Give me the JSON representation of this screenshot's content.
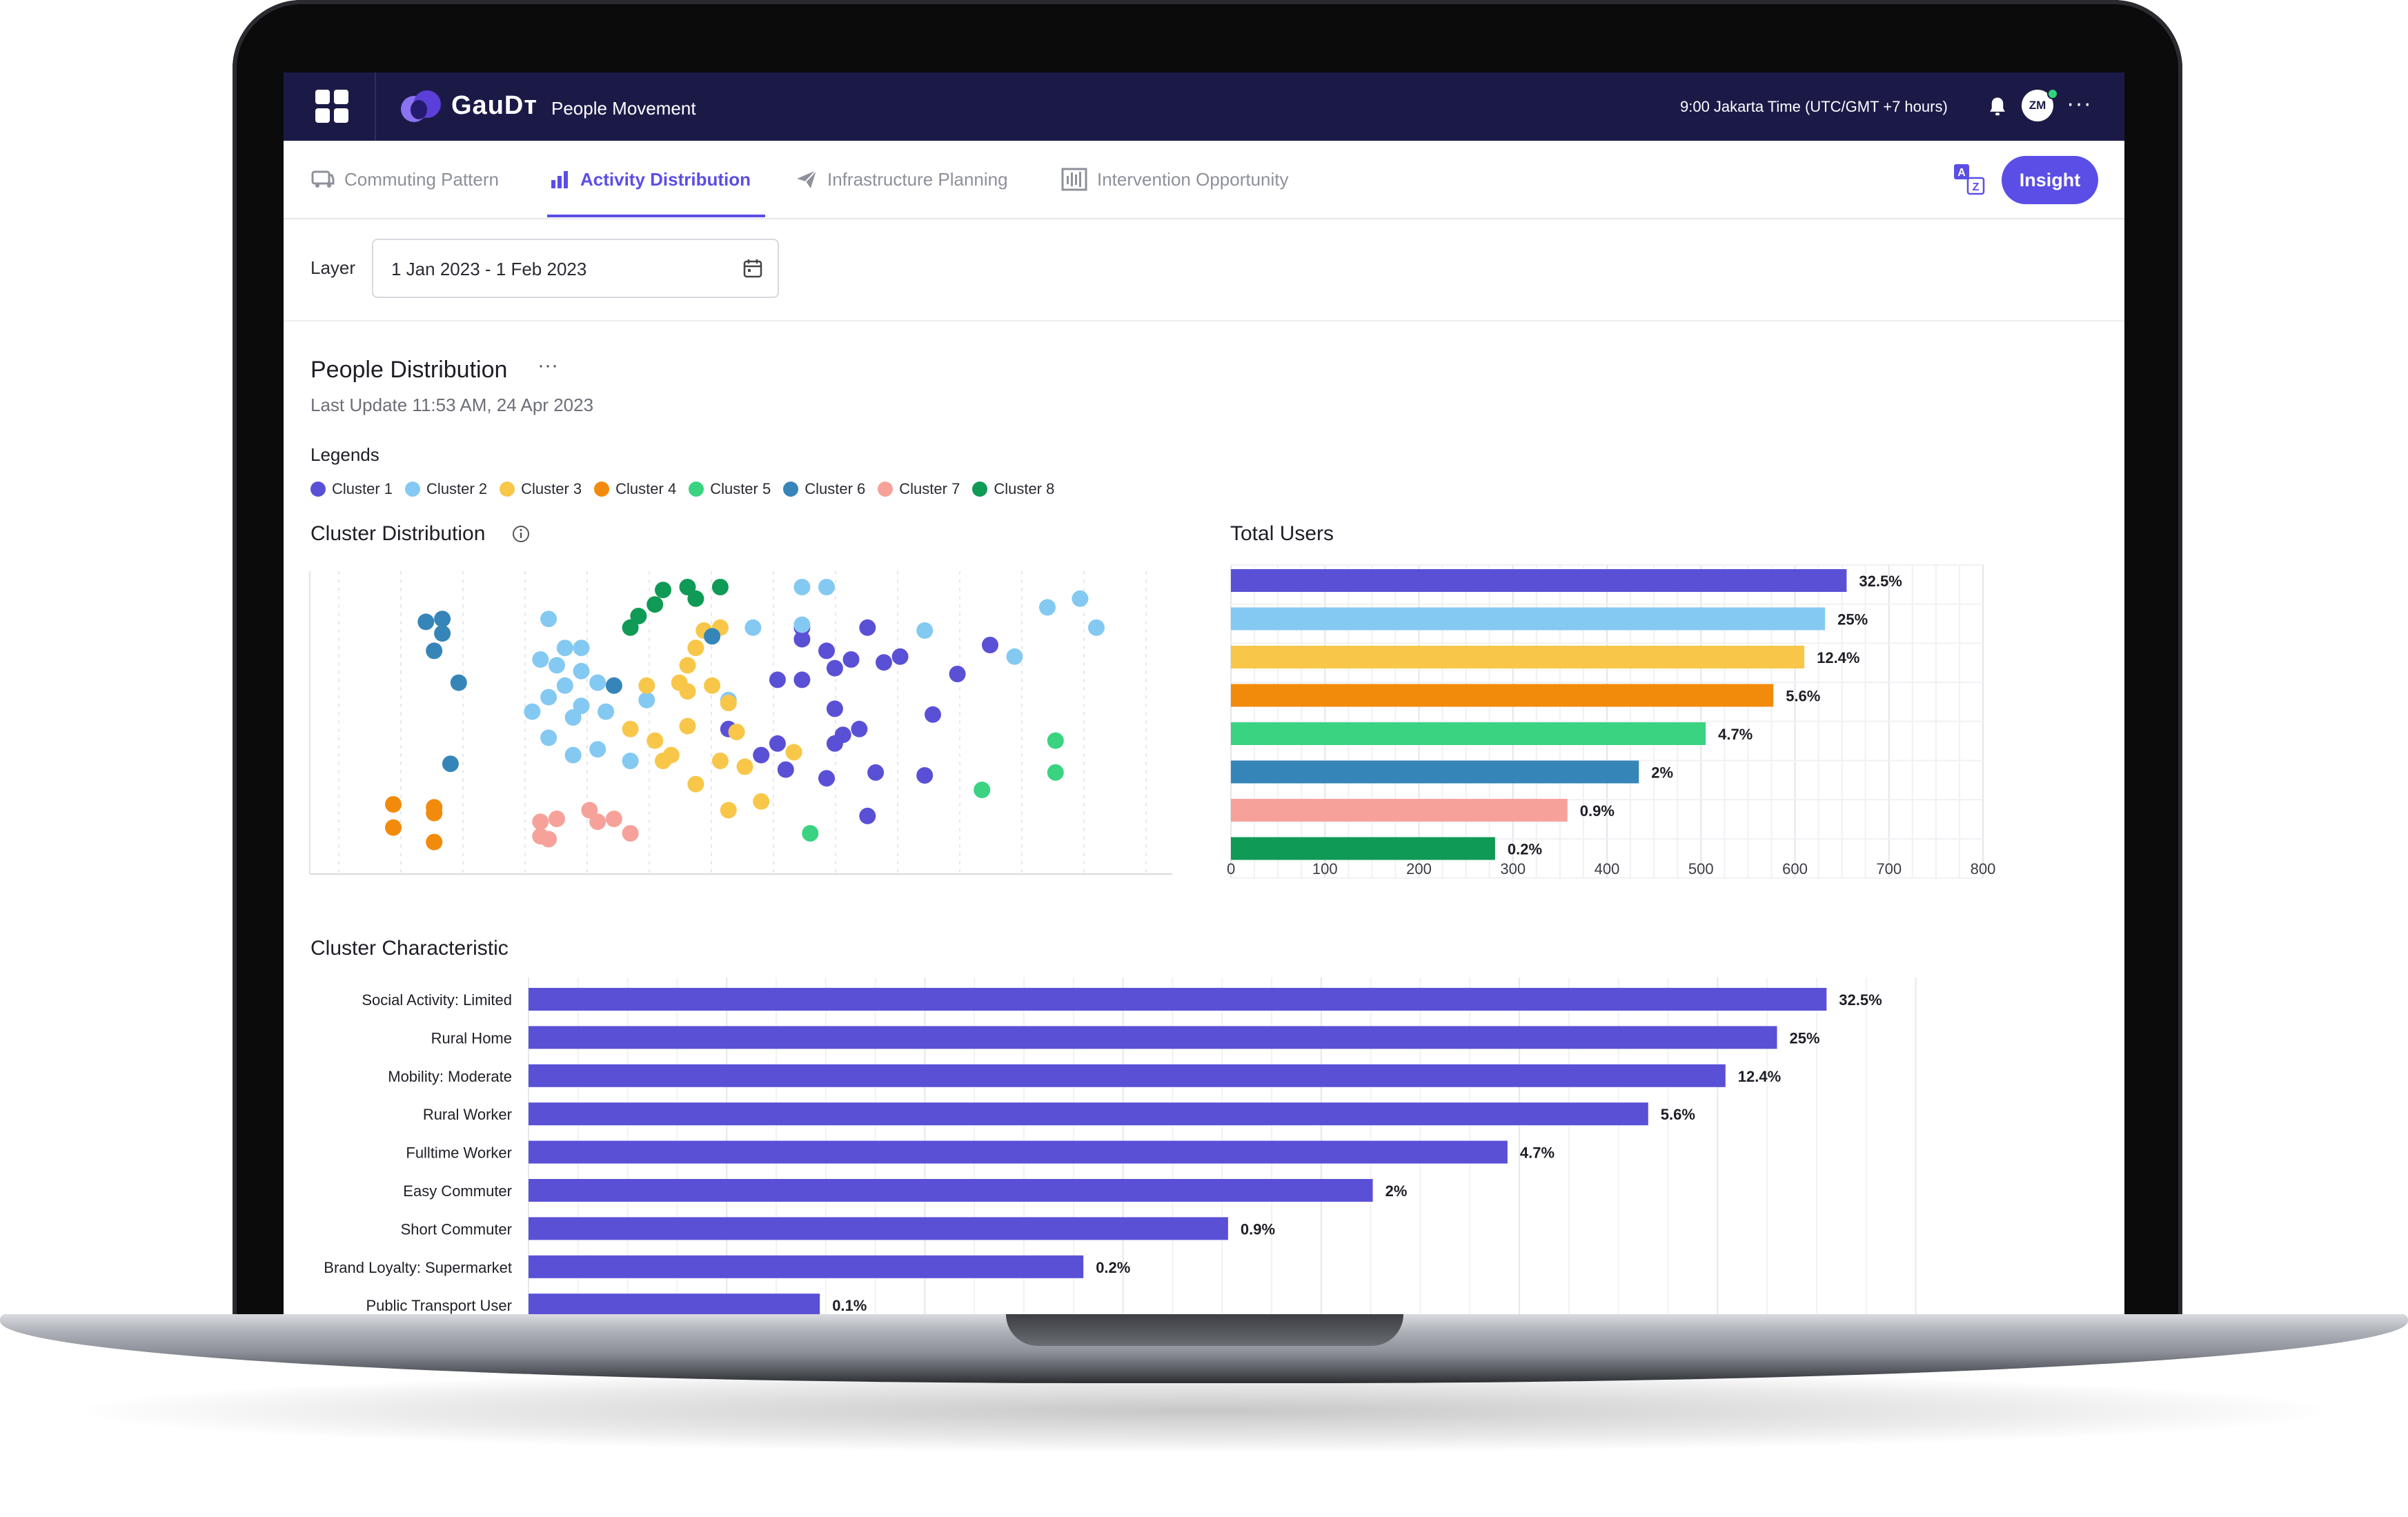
{
  "topbar": {
    "brand": "GauDᴛ",
    "subtitle": "People Movement",
    "time_text": "9:00 Jakarta Time (UTC/GMT +7 hours)",
    "avatar_initials": "ZM",
    "more": "···"
  },
  "tabs": [
    {
      "label": "Commuting Pattern",
      "icon": "bus-icon",
      "active": false
    },
    {
      "label": "Activity Distribution",
      "icon": "bar-chart-icon",
      "active": true
    },
    {
      "label": "Infrastructure Planning",
      "icon": "paper-plane-icon",
      "active": false
    },
    {
      "label": "Intervention Opportunity",
      "icon": "waveform-icon",
      "active": false
    }
  ],
  "insight_button": "Insight",
  "filter": {
    "layer_label": "Layer",
    "date_range": "1 Jan 2023 - 1 Feb 2023"
  },
  "panel": {
    "title": "People Distribution",
    "menu": "···",
    "last_update": "Last Update 11:53 AM, 24 Apr 2023",
    "legends_title": "Legends"
  },
  "legend": [
    {
      "name": "Cluster 1",
      "color": "#5a50d6"
    },
    {
      "name": "Cluster 2",
      "color": "#84c9f2"
    },
    {
      "name": "Cluster 3",
      "color": "#f8c74a"
    },
    {
      "name": "Cluster 4",
      "color": "#f28b0c"
    },
    {
      "name": "Cluster 5",
      "color": "#39d382"
    },
    {
      "name": "Cluster 6",
      "color": "#3685b8"
    },
    {
      "name": "Cluster 7",
      "color": "#f6a29a"
    },
    {
      "name": "Cluster 8",
      "color": "#0f9a55"
    }
  ],
  "chart_data": [
    {
      "type": "scatter",
      "title": "Cluster Distribution",
      "xlim": [
        0,
        100
      ],
      "ylim": [
        0,
        100
      ],
      "grid": true,
      "series": [
        {
          "name": "Cluster 1",
          "color": "#5a50d6",
          "points": [
            [
              57,
              81
            ],
            [
              65,
              81
            ],
            [
              57,
              77
            ],
            [
              60,
              73
            ],
            [
              63,
              70
            ],
            [
              67,
              69
            ],
            [
              61,
              67
            ],
            [
              69,
              71
            ],
            [
              61,
              53
            ],
            [
              73,
              51
            ],
            [
              76,
              65
            ],
            [
              54,
              63
            ],
            [
              57,
              63
            ],
            [
              48,
              46
            ],
            [
              54,
              41
            ],
            [
              61,
              41
            ],
            [
              64,
              46
            ],
            [
              52,
              37
            ],
            [
              55,
              32
            ],
            [
              62,
              44
            ],
            [
              66,
              31
            ],
            [
              60,
              29
            ],
            [
              65,
              16
            ],
            [
              72,
              30
            ],
            [
              80,
              75
            ]
          ]
        },
        {
          "name": "Cluster 2",
          "color": "#84c9f2",
          "points": [
            [
              57,
              95
            ],
            [
              60,
              95
            ],
            [
              26,
              84
            ],
            [
              28,
              74
            ],
            [
              30,
              74
            ],
            [
              25,
              70
            ],
            [
              27,
              68
            ],
            [
              30,
              66
            ],
            [
              32,
              62
            ],
            [
              28,
              61
            ],
            [
              26,
              57
            ],
            [
              30,
              54
            ],
            [
              33,
              52
            ],
            [
              24,
              52
            ],
            [
              29,
              50
            ],
            [
              26,
              43
            ],
            [
              32,
              39
            ],
            [
              38,
              56
            ],
            [
              29,
              37
            ],
            [
              36,
              35
            ],
            [
              48,
              56
            ],
            [
              51,
              81
            ],
            [
              57,
              82
            ],
            [
              72,
              80
            ],
            [
              93,
              81
            ],
            [
              87,
              88
            ],
            [
              83,
              71
            ],
            [
              91,
              91
            ]
          ]
        },
        {
          "name": "Cluster 3",
          "color": "#f8c74a",
          "points": [
            [
              47,
              81
            ],
            [
              45,
              80
            ],
            [
              44,
              74
            ],
            [
              43,
              68
            ],
            [
              42,
              62
            ],
            [
              38,
              61
            ],
            [
              43,
              59
            ],
            [
              43,
              47
            ],
            [
              36,
              46
            ],
            [
              39,
              42
            ],
            [
              41,
              37
            ],
            [
              47,
              35
            ],
            [
              40,
              35
            ],
            [
              50,
              33
            ],
            [
              56,
              38
            ],
            [
              52,
              21
            ],
            [
              48,
              18
            ],
            [
              44,
              27
            ],
            [
              48,
              55
            ],
            [
              49,
              45
            ],
            [
              46,
              61
            ]
          ]
        },
        {
          "name": "Cluster 4",
          "color": "#f28b0c",
          "points": [
            [
              7,
              20
            ],
            [
              12,
              19
            ],
            [
              7,
              12
            ],
            [
              12,
              7
            ],
            [
              12,
              17
            ]
          ]
        },
        {
          "name": "Cluster 5",
          "color": "#39d382",
          "points": [
            [
              58,
              10
            ],
            [
              79,
              25
            ],
            [
              88,
              42
            ],
            [
              88,
              31
            ]
          ]
        },
        {
          "name": "Cluster 6",
          "color": "#3685b8",
          "points": [
            [
              11,
              83
            ],
            [
              13,
              84
            ],
            [
              13,
              79
            ],
            [
              12,
              73
            ],
            [
              15,
              62
            ],
            [
              14,
              34
            ],
            [
              34,
              61
            ],
            [
              46,
              78
            ]
          ]
        },
        {
          "name": "Cluster 7",
          "color": "#f6a29a",
          "points": [
            [
              25,
              14
            ],
            [
              27,
              15
            ],
            [
              25,
              9
            ],
            [
              26,
              8
            ],
            [
              32,
              14
            ],
            [
              31,
              18
            ],
            [
              34,
              15
            ],
            [
              36,
              10
            ]
          ]
        },
        {
          "name": "Cluster 8",
          "color": "#0f9a55",
          "points": [
            [
              43,
              95
            ],
            [
              40,
              94
            ],
            [
              39,
              89
            ],
            [
              37,
              85
            ],
            [
              36,
              81
            ],
            [
              44,
              91
            ],
            [
              47,
              95
            ]
          ]
        }
      ]
    },
    {
      "type": "bar",
      "title": "Total Users",
      "orientation": "horizontal",
      "categories": [
        "Cluster 1",
        "Cluster 2",
        "Cluster 3",
        "Cluster 4",
        "Cluster 5",
        "Cluster 6",
        "Cluster 7",
        "Cluster 8"
      ],
      "values": [
        655,
        632,
        610,
        577,
        505,
        434,
        358,
        281
      ],
      "labels": [
        "32.5%",
        "25%",
        "12.4%",
        "5.6%",
        "4.7%",
        "2%",
        "0.9%",
        "0.2%"
      ],
      "colors": [
        "#5a50d6",
        "#84c9f2",
        "#f8c74a",
        "#f28b0c",
        "#39d382",
        "#3685b8",
        "#f6a29a",
        "#0f9a55"
      ],
      "xlim": [
        0,
        800
      ],
      "xticks": [
        "0",
        "100",
        "200",
        "300",
        "400",
        "500",
        "600",
        "700",
        "800"
      ],
      "grid": true
    },
    {
      "type": "bar",
      "title": "Cluster Characteristic",
      "orientation": "horizontal",
      "categories": [
        "Social Activity: Limited",
        "Rural Home",
        "Mobility: Moderate",
        "Rural Worker",
        "Fulltime Worker",
        "Easy Commuter",
        "Short Commuter",
        "Brand Loyalty: Supermarket",
        "Public Transport User"
      ],
      "values": [
        655,
        630,
        604,
        565,
        494,
        426,
        353,
        280,
        147
      ],
      "labels": [
        "32.5%",
        "25%",
        "12.4%",
        "5.6%",
        "4.7%",
        "2%",
        "0.9%",
        "0.2%",
        "0.1%"
      ],
      "color": "#5a50d6",
      "xlim": [
        0,
        720
      ],
      "grid": true
    }
  ]
}
